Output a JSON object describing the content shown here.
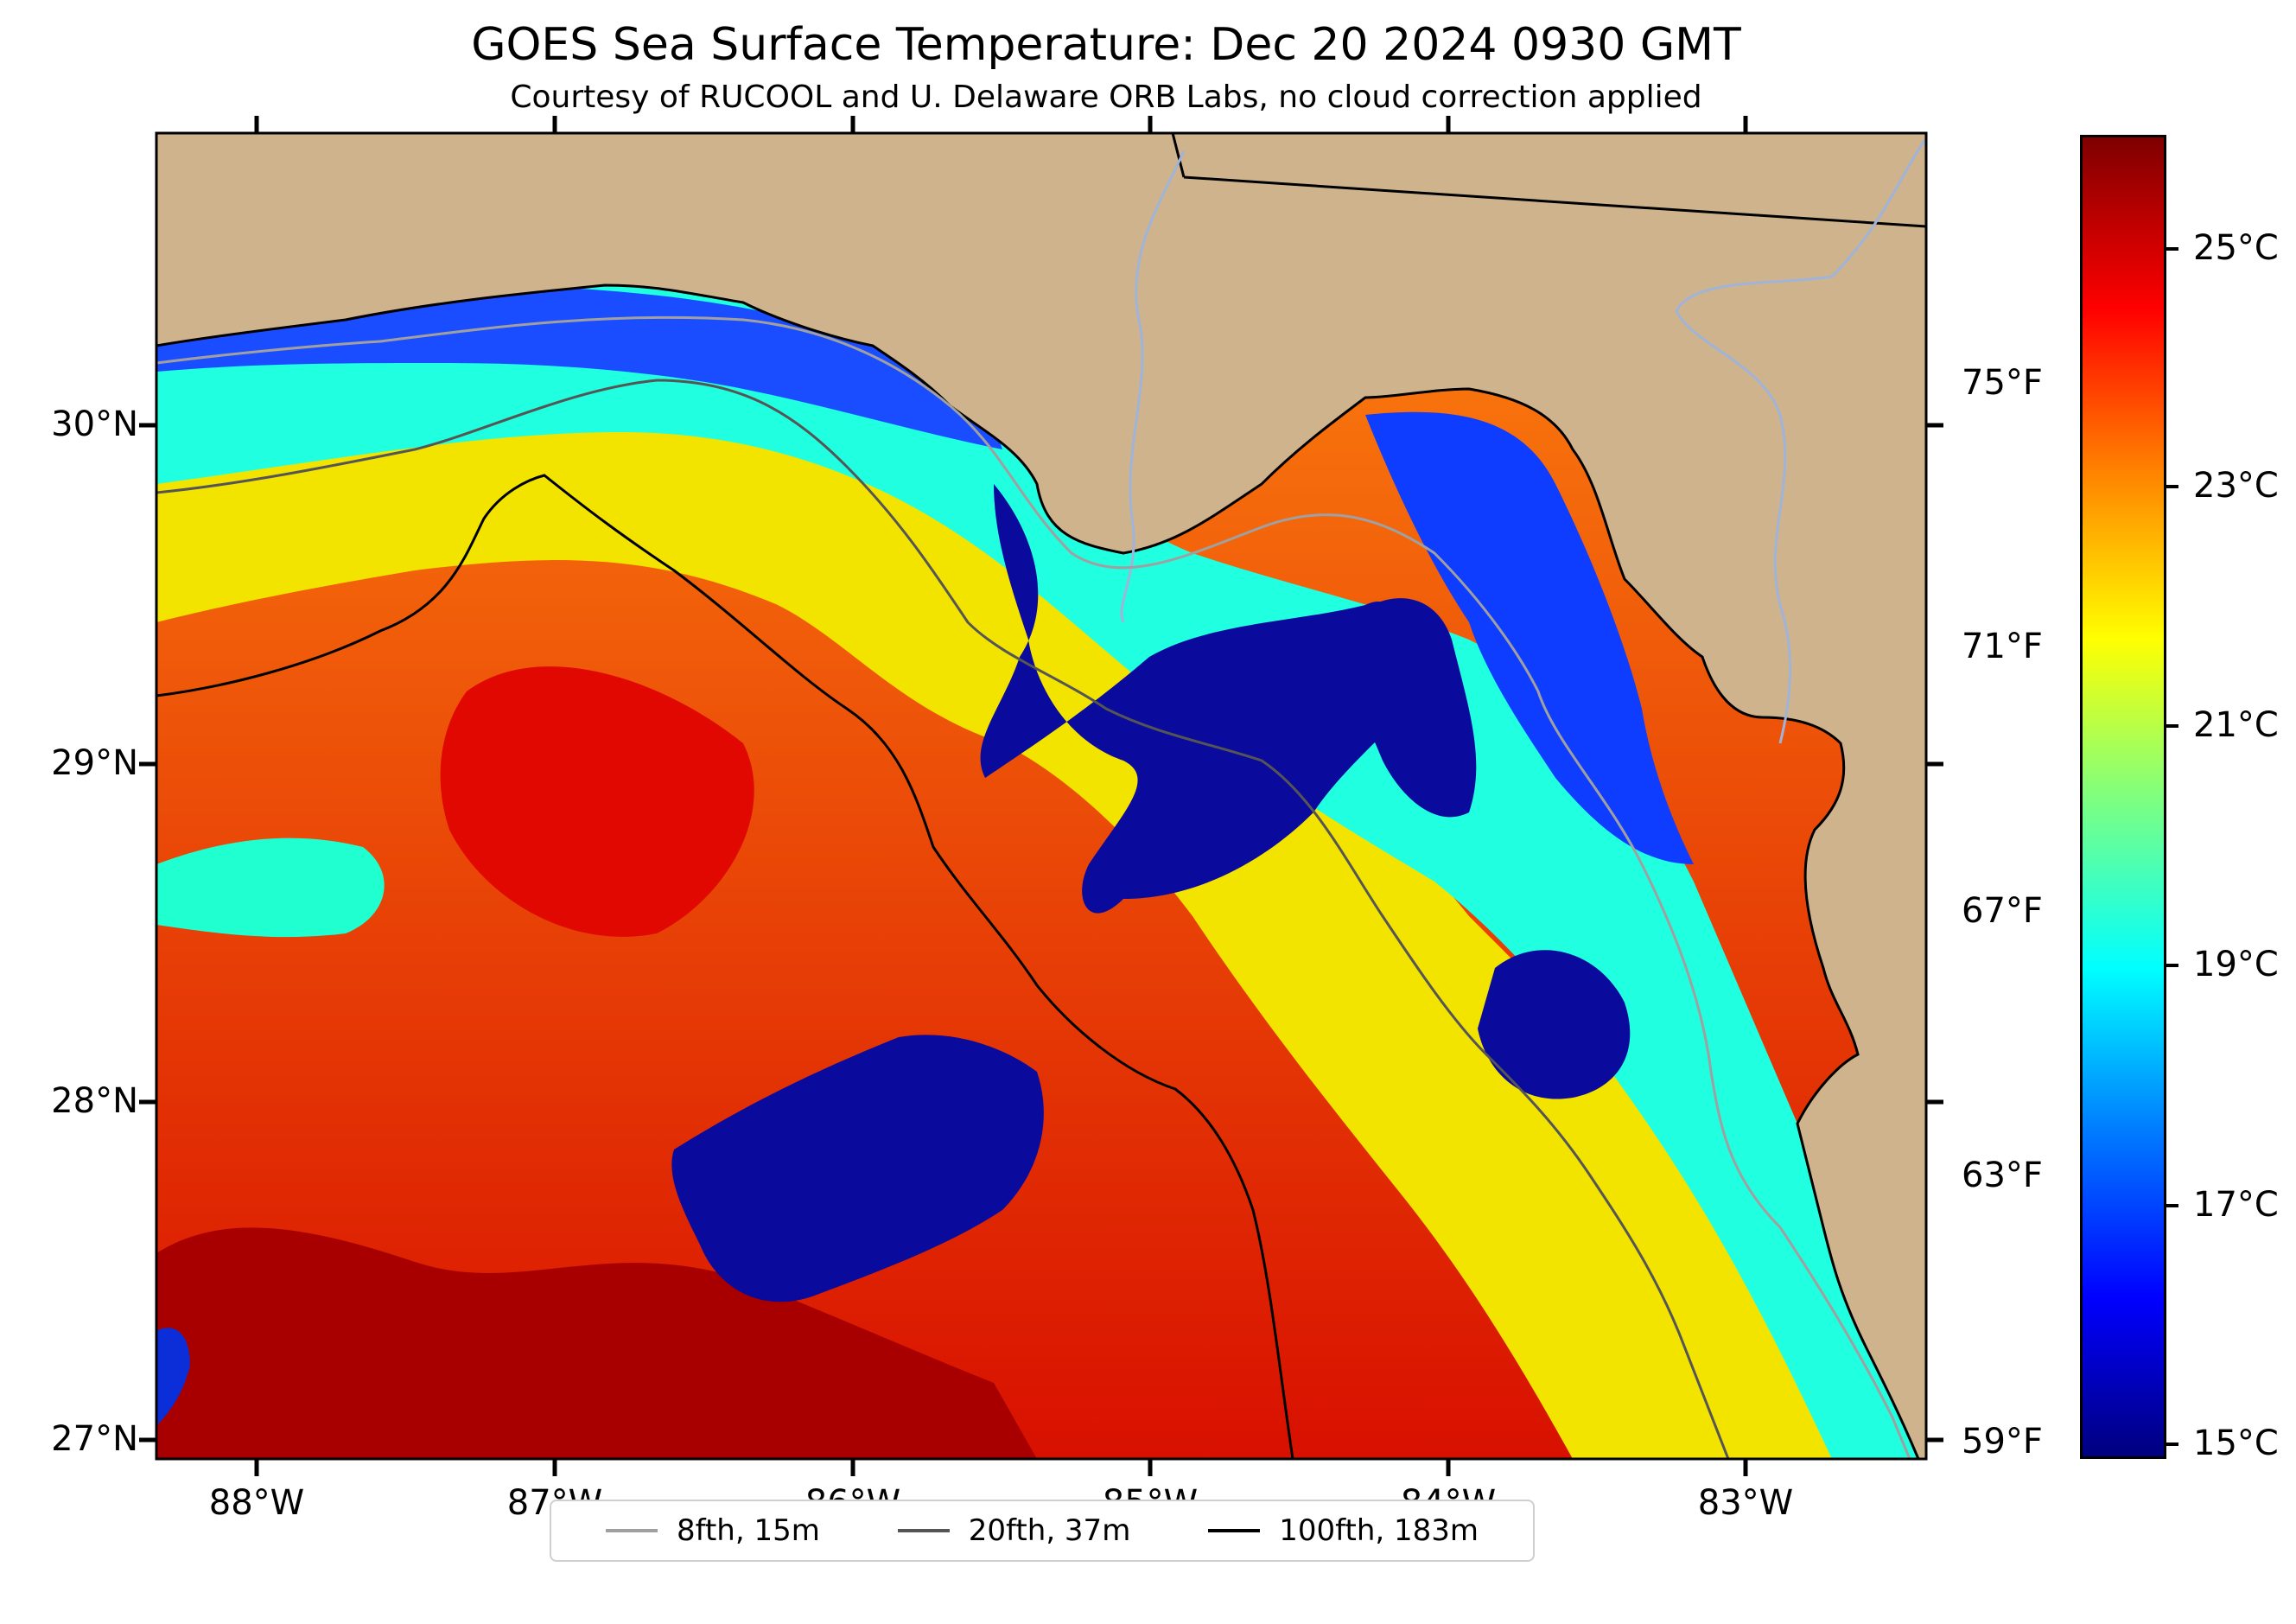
{
  "title": "GOES Sea Surface Temperature: Dec 20 2024 0930 GMT",
  "subtitle": "Courtesy of RUCOOL and U. Delaware ORB Labs, no cloud correction applied",
  "latitude_labels": [
    "30°N",
    "29°N",
    "28°N",
    "27°N"
  ],
  "longitude_labels": [
    "88°W",
    "87°W",
    "86°W",
    "85°W",
    "84°W",
    "83°W"
  ],
  "fahrenheit_labels": [
    "75°F",
    "71°F",
    "67°F",
    "63°F",
    "59°F"
  ],
  "celsius_labels": [
    "25°C",
    "23°C",
    "21°C",
    "19°C",
    "17°C",
    "15°C"
  ],
  "legend": [
    {
      "label": "8fth, 15m",
      "color": "#a0a0a0"
    },
    {
      "label": "20fth, 37m",
      "color": "#555555"
    },
    {
      "label": "100fth, 183m",
      "color": "#000000"
    }
  ],
  "colors": {
    "land": "#cfb38c",
    "colormap": "jet"
  }
}
